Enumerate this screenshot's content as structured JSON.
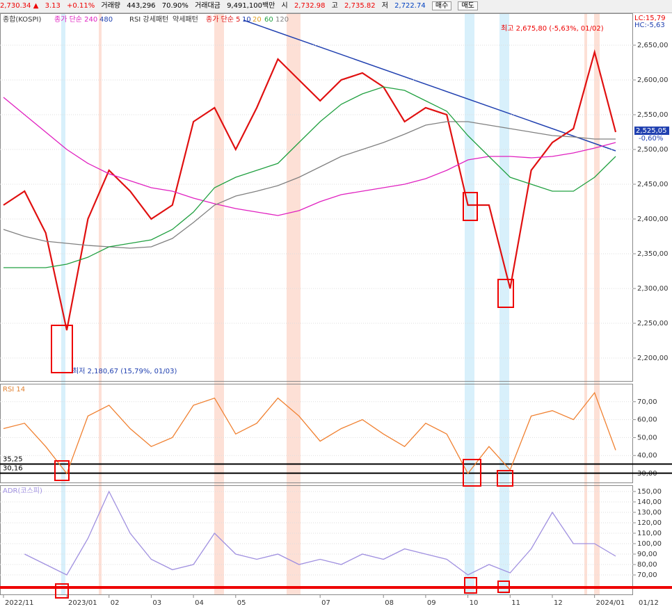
{
  "header": {
    "price": "2,730.34 ▲",
    "change": "3.13",
    "change_pct": "+0.11%",
    "volume_label": "거래량",
    "volume": "443,296",
    "volume_pct": "70.90%",
    "amount_label": "거래대금",
    "amount": "9,491,100백만",
    "open_label": "시",
    "open": "2,732.98",
    "high_label": "고",
    "high": "2,735.82",
    "low_label": "저",
    "low": "2,722.74",
    "buy": "매수",
    "sell": "매도"
  },
  "legend_extra": [
    "480",
    "RSI 강세패턴",
    "약세패턴",
    "종가 단순 5",
    "10",
    "20"
  ],
  "chart_data": [
    {
      "type": "line",
      "ylim": [
        2167,
        2695
      ],
      "yticks": [
        {
          "value": 2200,
          "label": "2,200,00"
        },
        {
          "value": 2250,
          "label": "2,250,00"
        },
        {
          "value": 2300,
          "label": "2,300,00"
        },
        {
          "value": 2350,
          "label": "2,350,00"
        },
        {
          "value": 2400,
          "label": "2,400,00"
        },
        {
          "value": 2450,
          "label": "2,450,00"
        },
        {
          "value": 2500,
          "label": "2,500,00"
        },
        {
          "value": 2550,
          "label": "2,550,00"
        },
        {
          "value": 2600,
          "label": "2,600,00"
        },
        {
          "value": 2650,
          "label": "2,650,00"
        }
      ],
      "grid": true,
      "annotations": {
        "high": "최고 2,675,80 (-5,63%, 01/02)",
        "low": "최저 2,180,67 (15,79%, 01/03)",
        "lc": "LC:15,79",
        "hc": "HC:-5,63",
        "last": "2,525,05",
        "last_pct": "-0,60%"
      },
      "series": [
        {
          "name": "종합(KOSPI)",
          "color": "#e01010",
          "values": [
            2420,
            2440,
            2380,
            2240,
            2400,
            2470,
            2440,
            2400,
            2420,
            2540,
            2560,
            2500,
            2560,
            2630,
            2600,
            2570,
            2600,
            2610,
            2590,
            2540,
            2560,
            2550,
            2420,
            2420,
            2300,
            2470,
            2510,
            2530,
            2640,
            2525
          ]
        },
        {
          "name": "종가 단순 240",
          "color": "#e020c0",
          "values": [
            2575,
            2550,
            2525,
            2500,
            2480,
            2465,
            2455,
            2445,
            2440,
            2430,
            2422,
            2415,
            2410,
            2405,
            2412,
            2425,
            2435,
            2440,
            2445,
            2450,
            2458,
            2470,
            2485,
            2490,
            2490,
            2488,
            2490,
            2495,
            2502,
            2510
          ]
        },
        {
          "name": "120",
          "color": "#808080",
          "values": [
            2385,
            2375,
            2368,
            2365,
            2362,
            2360,
            2358,
            2360,
            2372,
            2395,
            2420,
            2433,
            2440,
            2448,
            2460,
            2475,
            2490,
            2500,
            2510,
            2522,
            2535,
            2540,
            2540,
            2535,
            2530,
            2525,
            2520,
            2518,
            2515,
            2515
          ]
        },
        {
          "name": "60",
          "color": "#20a040",
          "values": [
            2330,
            2330,
            2330,
            2335,
            2345,
            2360,
            2365,
            2370,
            2385,
            2410,
            2445,
            2460,
            2470,
            2480,
            2510,
            2540,
            2565,
            2580,
            2590,
            2585,
            2570,
            2555,
            2520,
            2490,
            2460,
            2450,
            2440,
            2440,
            2460,
            2490
          ]
        }
      ]
    },
    {
      "type": "line",
      "title": "RSI 14",
      "ylim": [
        24.6,
        79.6
      ],
      "yticks": [
        {
          "value": 30,
          "label": "30,00"
        },
        {
          "value": 40,
          "label": "40,00"
        },
        {
          "value": 50,
          "label": "50,00"
        },
        {
          "value": 60,
          "label": "60,00"
        },
        {
          "value": 70,
          "label": "70,00"
        }
      ],
      "grid": true,
      "levels": [
        {
          "value": 35.25,
          "label": "35,25"
        },
        {
          "value": 30.16,
          "label": "30,16"
        }
      ],
      "series": [
        {
          "name": "RSI 14",
          "color": "#f08030",
          "values": [
            55,
            58,
            45,
            30,
            62,
            68,
            55,
            45,
            50,
            68,
            72,
            52,
            58,
            72,
            62,
            48,
            55,
            60,
            52,
            45,
            58,
            52,
            30,
            45,
            32,
            62,
            65,
            60,
            75,
            43
          ]
        }
      ]
    },
    {
      "type": "line",
      "title": "ADR(코스피)",
      "ylim": [
        50.7,
        155.3
      ],
      "yticks": [
        {
          "value": 70,
          "label": "70,00"
        },
        {
          "value": 80,
          "label": "80,00"
        },
        {
          "value": 90,
          "label": "90,00"
        },
        {
          "value": 100,
          "label": "100,00"
        },
        {
          "value": 110,
          "label": "110,00"
        },
        {
          "value": 120,
          "label": "120,00"
        },
        {
          "value": 130,
          "label": "130,00"
        },
        {
          "value": 140,
          "label": "140,00"
        },
        {
          "value": 150,
          "label": "150,00"
        }
      ],
      "grid": true,
      "categories": [
        "2022/11",
        null,
        null,
        "2023/01",
        null,
        "02",
        null,
        "03",
        null,
        "04",
        null,
        "05",
        null,
        null,
        null,
        "07",
        null,
        null,
        "08",
        null,
        "09",
        null,
        "10",
        null,
        "11",
        null,
        "12",
        null,
        "2024/01",
        null
      ],
      "end_label": "01/12",
      "series": [
        {
          "name": "ADR(코스피)",
          "color": "#a090e0",
          "values": [
            null,
            90,
            80,
            70,
            105,
            150,
            110,
            85,
            75,
            80,
            110,
            90,
            85,
            90,
            80,
            85,
            80,
            90,
            85,
            95,
            90,
            85,
            70,
            80,
            72,
            95,
            130,
            100,
            100,
            88
          ]
        }
      ]
    }
  ]
}
